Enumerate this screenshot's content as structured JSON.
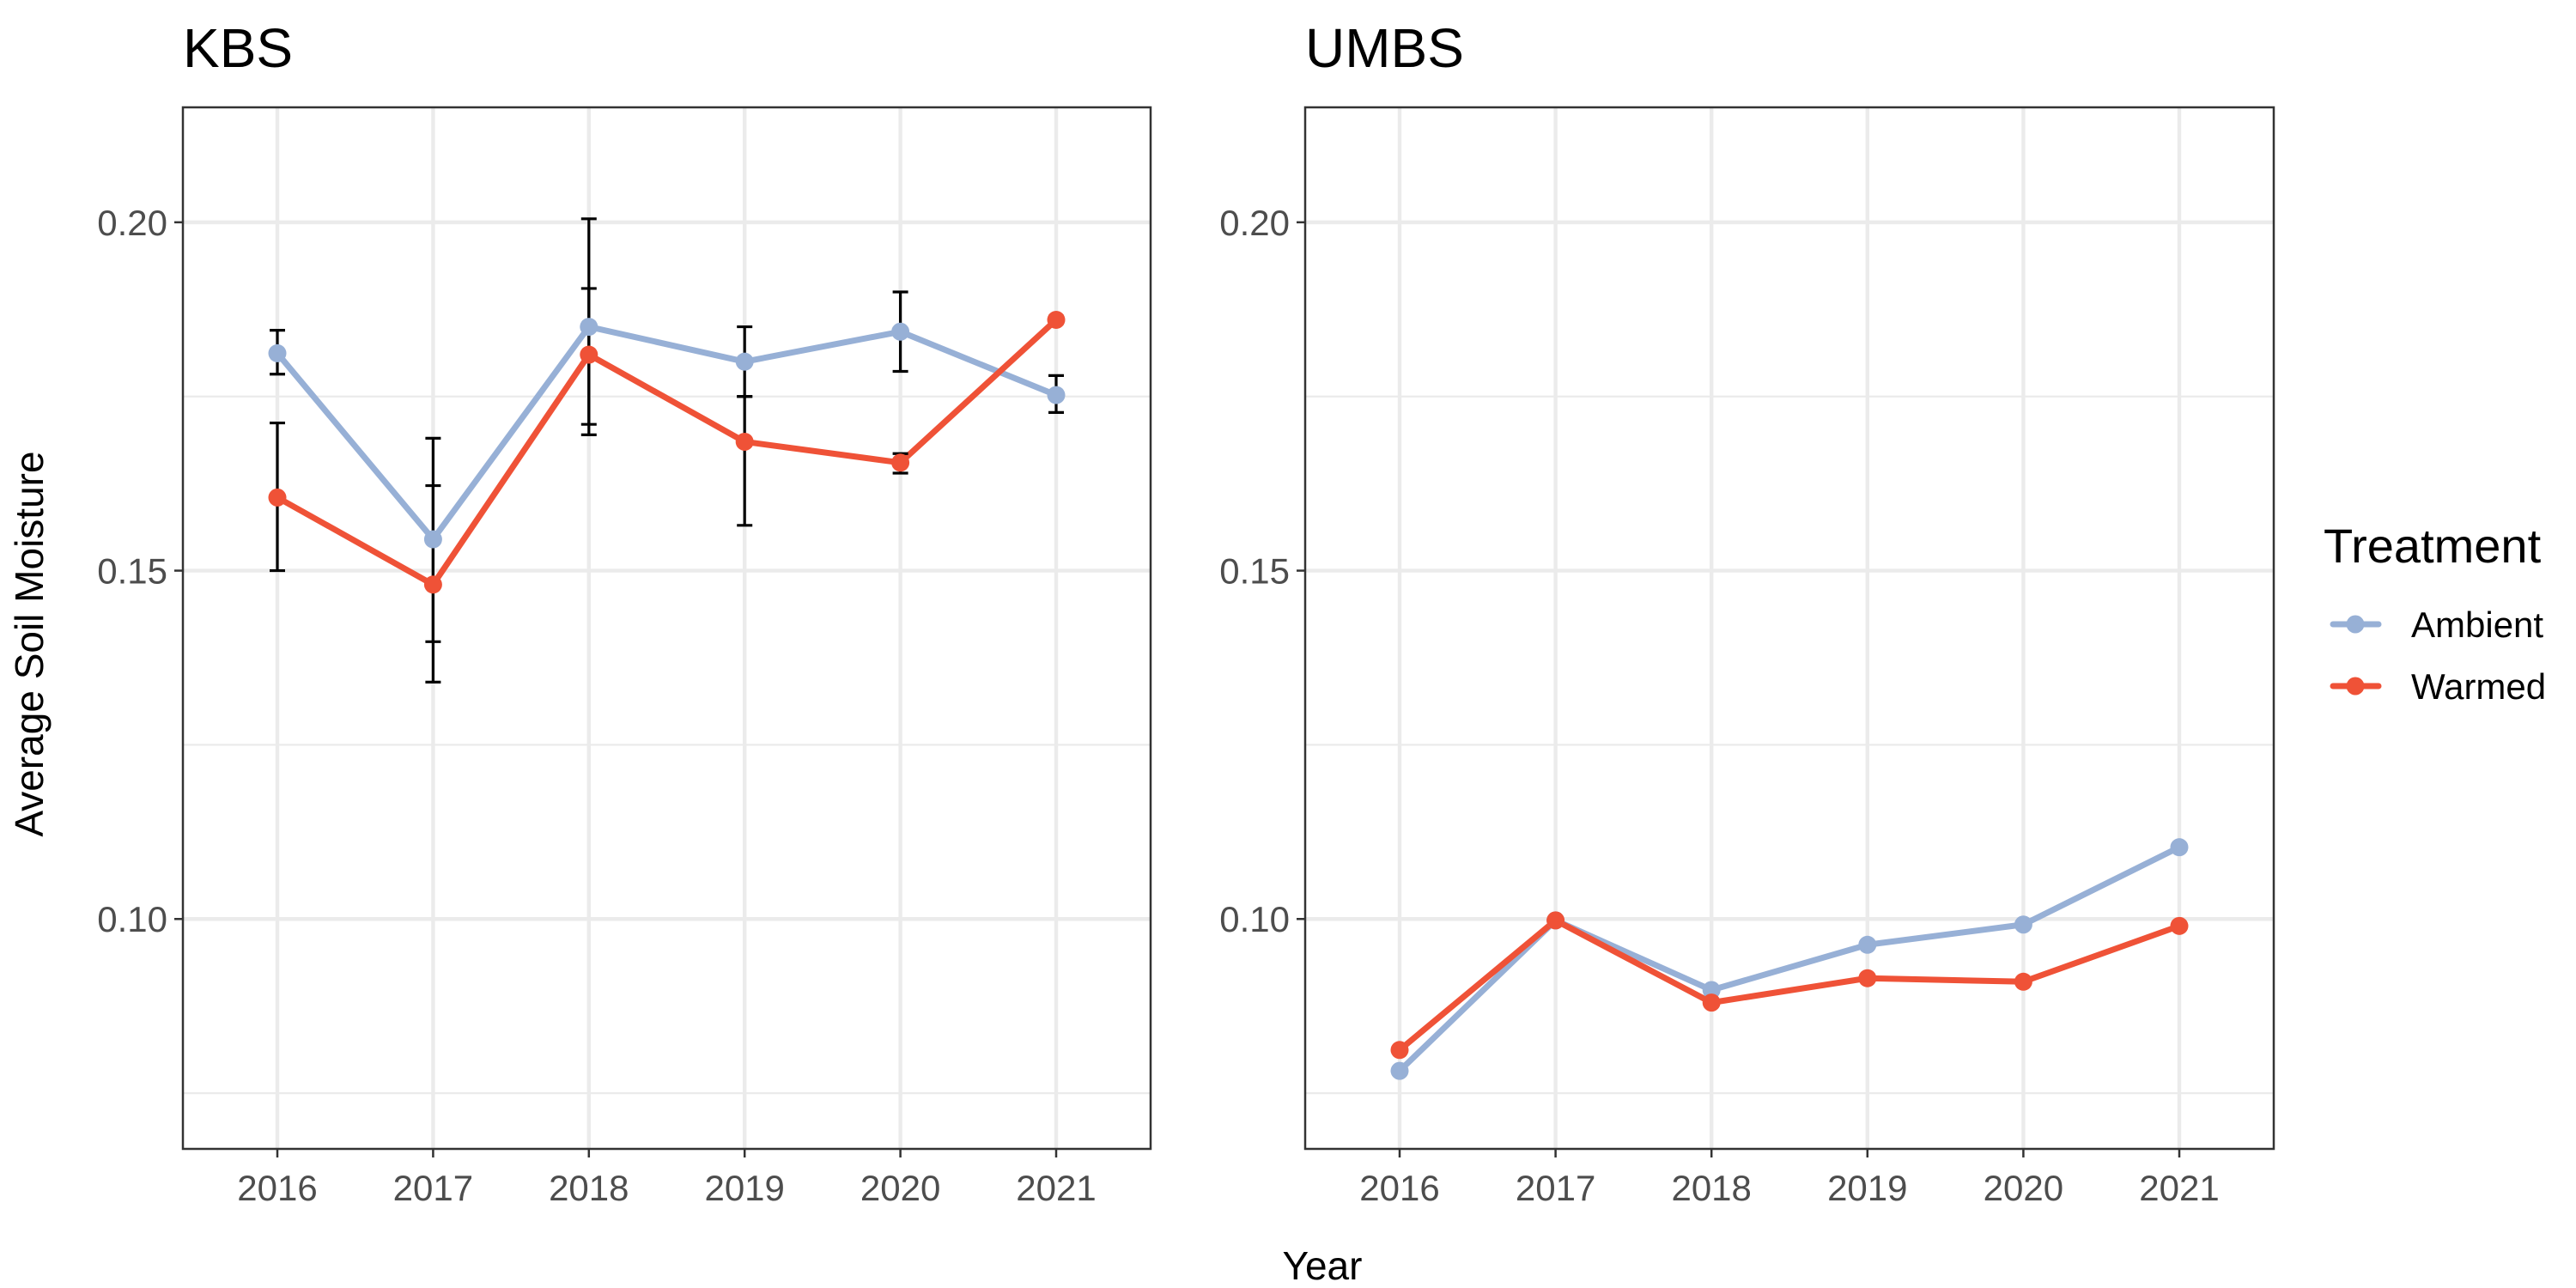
{
  "chart_data": {
    "type": "line",
    "xlabel": "Year",
    "ylabel": "Average Soil Moisture",
    "legend": {
      "title": "Treatment",
      "placement": "right",
      "entries": [
        "Ambient",
        "Warmed"
      ]
    },
    "colors": {
      "Ambient": "#97b0d6",
      "Warmed": "#ef5237",
      "errorbar": "#000000",
      "grid": "#ebebeb"
    },
    "grid": true,
    "shared_y_axis": true,
    "x": [
      2016,
      2017,
      2018,
      2019,
      2020,
      2021
    ],
    "x_tick_labels": [
      "2016",
      "2017",
      "2018",
      "2019",
      "2020",
      "2021"
    ],
    "ylim": [
      0.067,
      0.2165
    ],
    "y_ticks": [
      0.1,
      0.15,
      0.2
    ],
    "y_tick_labels": [
      "0.10",
      "0.15",
      "0.20"
    ],
    "panels": [
      {
        "title": "KBS",
        "series": [
          {
            "name": "Ambient",
            "values": [
              0.1812,
              0.1545,
              0.185,
              0.18,
              0.1843,
              0.1752
            ],
            "error_low": [
              0.1782,
              0.1398,
              0.1695,
              0.175,
              0.1786,
              0.1727
            ],
            "error_high": [
              0.1845,
              0.1622,
              0.2005,
              0.185,
              0.19,
              0.178
            ]
          },
          {
            "name": "Warmed",
            "values": [
              0.1605,
              0.148,
              0.181,
              0.1685,
              0.1655,
              0.186
            ],
            "error_low": [
              0.15,
              0.134,
              0.171,
              0.1565,
              0.164,
              0.1855
            ],
            "error_high": [
              0.1712,
              0.169,
              0.1905,
              0.175,
              0.1668,
              0.1865
            ]
          }
        ]
      },
      {
        "title": "UMBS",
        "series": [
          {
            "name": "Ambient",
            "values": [
              0.0782,
              0.0998,
              0.0898,
              0.0963,
              0.0992,
              0.1103
            ]
          },
          {
            "name": "Warmed",
            "values": [
              0.0812,
              0.0998,
              0.088,
              0.0915,
              0.091,
              0.099
            ]
          }
        ]
      }
    ]
  }
}
